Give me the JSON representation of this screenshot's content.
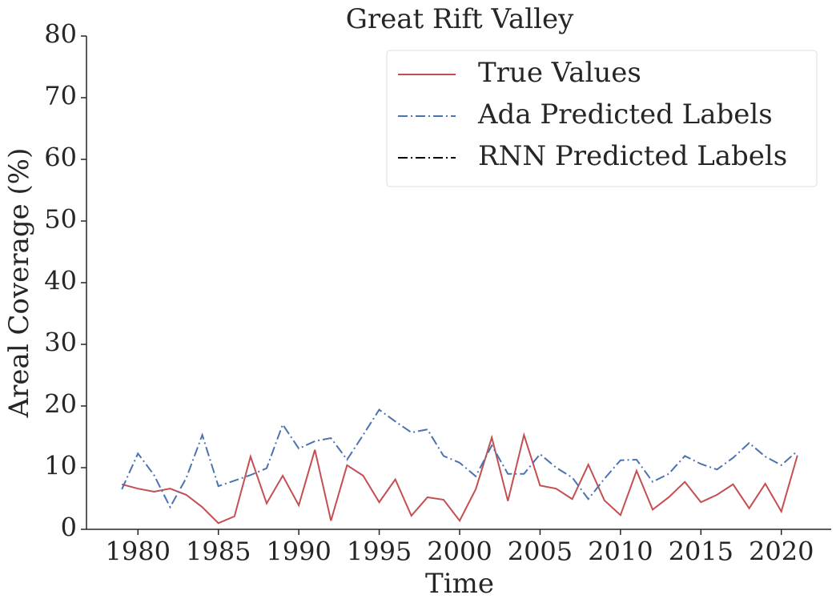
{
  "chart_data": {
    "type": "line",
    "title": "Great Rift Valley",
    "xlabel": "Time",
    "ylabel": "Areal Coverage (%)",
    "x": [
      1979,
      1980,
      1981,
      1982,
      1983,
      1984,
      1985,
      1986,
      1987,
      1988,
      1989,
      1990,
      1991,
      1992,
      1993,
      1994,
      1995,
      1996,
      1997,
      1998,
      1999,
      2000,
      2001,
      2002,
      2003,
      2004,
      2005,
      2006,
      2007,
      2008,
      2009,
      2010,
      2011,
      2012,
      2013,
      2014,
      2015,
      2016,
      2017,
      2018,
      2019,
      2020,
      2021
    ],
    "series": [
      {
        "name": "True Values",
        "color": "#c44e52",
        "dash": "solid",
        "values": [
          7.3,
          6.6,
          6.1,
          6.6,
          5.6,
          3.6,
          1.0,
          2.1,
          11.8,
          4.2,
          8.7,
          3.9,
          12.9,
          1.4,
          10.4,
          8.7,
          4.4,
          8.1,
          2.2,
          5.2,
          4.8,
          1.4,
          6.5,
          14.9,
          4.6,
          15.3,
          7.1,
          6.6,
          4.9,
          10.5,
          4.7,
          2.3,
          9.5,
          3.2,
          5.2,
          7.7,
          4.4,
          5.6,
          7.3,
          3.4,
          7.4,
          2.9,
          12.0
        ]
      },
      {
        "name": "Ada Predicted Labels",
        "color": "#4c72b0",
        "dash": "dashdot",
        "values": [
          6.5,
          12.3,
          8.8,
          3.6,
          8.3,
          15.3,
          7.0,
          7.9,
          8.8,
          9.9,
          17.0,
          13.1,
          14.3,
          14.8,
          11.3,
          15.3,
          19.4,
          17.5,
          15.7,
          16.2,
          11.9,
          10.8,
          8.6,
          13.6,
          9.0,
          9.0,
          12.2,
          10.0,
          8.4,
          4.9,
          8.2,
          11.2,
          11.3,
          7.7,
          9.0,
          11.9,
          10.6,
          9.7,
          11.6,
          14.0,
          11.8,
          10.4,
          12.7
        ]
      },
      {
        "name": "RNN Predicted Labels",
        "color": "#000000",
        "dash": "dashdot",
        "values": [
          null,
          null,
          null,
          null,
          null,
          null,
          null,
          null,
          null,
          null,
          null,
          null,
          null,
          null,
          null,
          null,
          null,
          null,
          null,
          null,
          null,
          null,
          null,
          null,
          null,
          null,
          null,
          null,
          null,
          null,
          null,
          null,
          null,
          null,
          null,
          null,
          null,
          null,
          null,
          null,
          null,
          null,
          null
        ]
      }
    ],
    "xlim": [
      1976.8,
      2023.1
    ],
    "xticks": [
      1980,
      1985,
      1990,
      1995,
      2000,
      2005,
      2010,
      2015,
      2020
    ],
    "ylim": [
      0,
      80
    ],
    "yticks": [
      0,
      10,
      20,
      30,
      40,
      50,
      60,
      70,
      80
    ],
    "legend": "upper right",
    "grid": false
  }
}
